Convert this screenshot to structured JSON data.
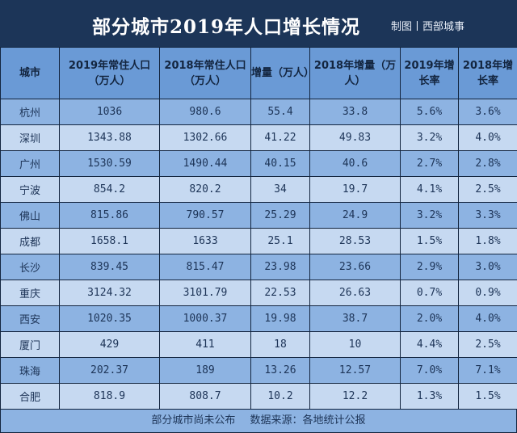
{
  "title": "部分城市2019年人口增长情况",
  "credit": "制图丨西部城事",
  "colors": {
    "title_bg": "#1c3558",
    "header_bg": "#6a9ad6",
    "row_dark": "#8db3e2",
    "row_light": "#c6d9f1"
  },
  "headers": [
    "城市",
    "2019年常住人口（万人）",
    "2018年常住人口（万人）",
    "增量（万人）",
    "2018年增量（万人）",
    "2019年增长率",
    "2018年增长率"
  ],
  "rows": [
    [
      "杭州",
      "1036",
      "980.6",
      "55.4",
      "33.8",
      "5.6%",
      "3.6%"
    ],
    [
      "深圳",
      "1343.88",
      "1302.66",
      "41.22",
      "49.83",
      "3.2%",
      "4.0%"
    ],
    [
      "广州",
      "1530.59",
      "1490.44",
      "40.15",
      "40.6",
      "2.7%",
      "2.8%"
    ],
    [
      "宁波",
      "854.2",
      "820.2",
      "34",
      "19.7",
      "4.1%",
      "2.5%"
    ],
    [
      "佛山",
      "815.86",
      "790.57",
      "25.29",
      "24.9",
      "3.2%",
      "3.3%"
    ],
    [
      "成都",
      "1658.1",
      "1633",
      "25.1",
      "28.53",
      "1.5%",
      "1.8%"
    ],
    [
      "长沙",
      "839.45",
      "815.47",
      "23.98",
      "23.66",
      "2.9%",
      "3.0%"
    ],
    [
      "重庆",
      "3124.32",
      "3101.79",
      "22.53",
      "26.63",
      "0.7%",
      "0.9%"
    ],
    [
      "西安",
      "1020.35",
      "1000.37",
      "19.98",
      "38.7",
      "2.0%",
      "4.0%"
    ],
    [
      "厦门",
      "429",
      "411",
      "18",
      "10",
      "4.4%",
      "2.5%"
    ],
    [
      "珠海",
      "202.37",
      "189",
      "13.26",
      "12.57",
      "7.0%",
      "7.1%"
    ],
    [
      "合肥",
      "818.9",
      "808.7",
      "10.2",
      "12.2",
      "1.3%",
      "1.5%"
    ]
  ],
  "footer": "部分城市尚未公布 数据来源：各地统计公报"
}
